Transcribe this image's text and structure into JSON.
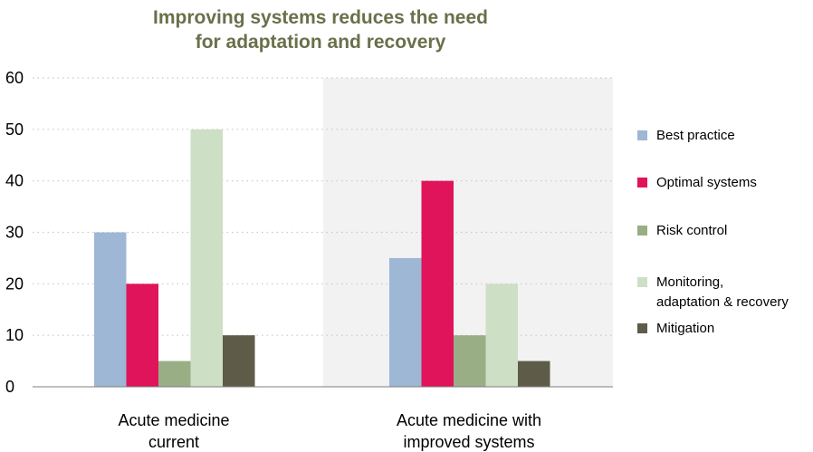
{
  "chart_data": {
    "type": "bar",
    "title_lines": [
      "Improving systems reduces the need",
      "for adaptation and recovery"
    ],
    "categories": [
      [
        "Acute medicine",
        "current"
      ],
      [
        "Acute medicine with",
        "improved systems"
      ]
    ],
    "ylim": [
      0,
      60
    ],
    "yticks": [
      0,
      10,
      20,
      30,
      40,
      50,
      60
    ],
    "grid": true,
    "legend_position": "right",
    "series": [
      {
        "name": "Best practice",
        "values": [
          30,
          25
        ],
        "color": "#9db7d5"
      },
      {
        "name": "Optimal systems",
        "values": [
          20,
          40
        ],
        "color": "#e0145a"
      },
      {
        "name": "Risk control",
        "values": [
          5,
          10
        ],
        "color": "#9aae86"
      },
      {
        "name": "Monitoring, adaptation & recovery",
        "legend_lines": [
          "Monitoring,",
          "adaptation & recovery"
        ],
        "values": [
          50,
          20
        ],
        "color": "#cddfc5"
      },
      {
        "name": "Mitigation",
        "values": [
          10,
          5
        ],
        "color": "#5e5c49"
      }
    ],
    "colors": {
      "title": "#6b6f4a",
      "shaded_region": "#f2f2f2",
      "grid": "#c8c8c8",
      "axis": "#7f7f7f"
    }
  }
}
